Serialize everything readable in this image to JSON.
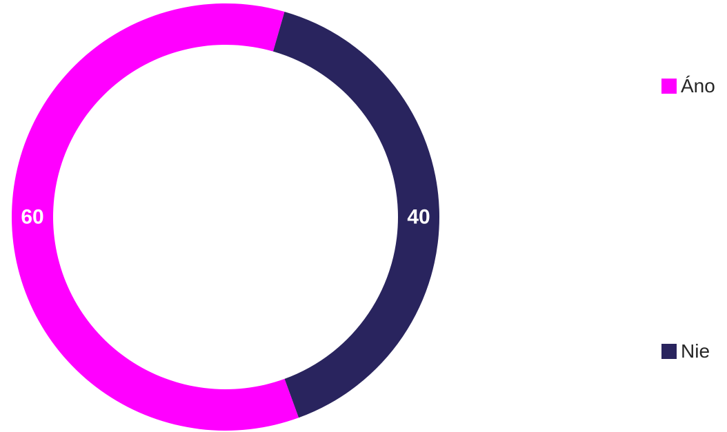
{
  "chart_data": {
    "type": "pie",
    "variant": "donut",
    "categories": [
      "Áno",
      "Nie"
    ],
    "values": [
      60,
      40
    ],
    "colors": [
      "#ff00ff",
      "#29245e"
    ],
    "data_labels": [
      "60",
      "40"
    ],
    "legend": {
      "placement": "right",
      "entries": [
        "Áno",
        "Nie"
      ]
    }
  }
}
